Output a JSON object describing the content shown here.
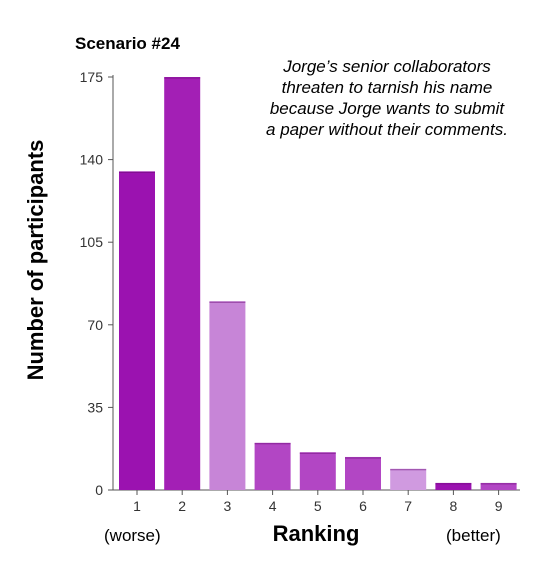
{
  "chart_data": {
    "type": "bar",
    "title": "Scenario #24",
    "annotation": "Jorge’s senior collaborators threaten to tarnish his name because Jorge wants to submit a paper without their comments.",
    "xlabel": "Ranking",
    "ylabel": "Number of participants",
    "categories": [
      "1",
      "2",
      "3",
      "4",
      "5",
      "6",
      "7",
      "8",
      "9"
    ],
    "values": [
      135,
      175,
      80,
      20,
      16,
      14,
      9,
      3,
      3
    ],
    "ylim": [
      0,
      175
    ],
    "yticks": [
      0,
      35,
      70,
      105,
      140,
      175
    ],
    "x_end_labels": {
      "left": "(worse)",
      "right": "(better)"
    },
    "grid": false,
    "bar_colors": [
      "#9b12b0",
      "#a31fb5",
      "#c785d7",
      "#b246c4",
      "#b246c4",
      "#b246c4",
      "#d09ae0",
      "#9b12b0",
      "#b246c4"
    ]
  }
}
